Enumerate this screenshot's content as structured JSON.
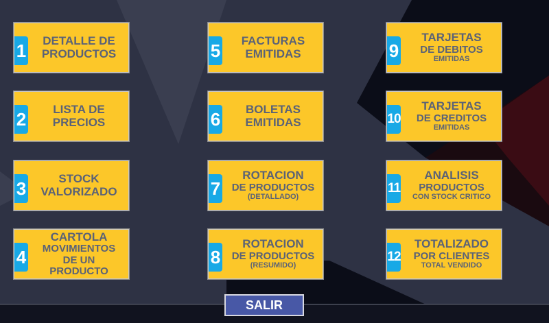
{
  "colors": {
    "card": "#fcc729",
    "badge": "#18a9e6",
    "text": "#5a6277",
    "exit_button": "#4858a6",
    "background": "#2e3244"
  },
  "cards": [
    {
      "number": "1",
      "lines": [
        {
          "t": "DETALLE DE",
          "s": "big"
        },
        {
          "t": "PRODUCTOS",
          "s": "big"
        }
      ]
    },
    {
      "number": "2",
      "lines": [
        {
          "t": "LISTA DE",
          "s": "big"
        },
        {
          "t": "PRECIOS",
          "s": "big"
        }
      ]
    },
    {
      "number": "3",
      "lines": [
        {
          "t": "STOCK",
          "s": "big"
        },
        {
          "t": "VALORIZADO",
          "s": "big"
        }
      ]
    },
    {
      "number": "4",
      "lines": [
        {
          "t": "CARTOLA",
          "s": "big"
        },
        {
          "t": "MOVIMIENTOS",
          "s": "mid"
        },
        {
          "t": "DE UN PRODUCTO",
          "s": "mid"
        }
      ]
    },
    {
      "number": "5",
      "lines": [
        {
          "t": "FACTURAS",
          "s": "big"
        },
        {
          "t": "EMITIDAS",
          "s": "big"
        }
      ]
    },
    {
      "number": "6",
      "lines": [
        {
          "t": "BOLETAS",
          "s": "big"
        },
        {
          "t": "EMITIDAS",
          "s": "big"
        }
      ]
    },
    {
      "number": "7",
      "lines": [
        {
          "t": "ROTACION",
          "s": "big"
        },
        {
          "t": "DE PRODUCTOS",
          "s": "mid"
        },
        {
          "t": "(DETALLADO)",
          "s": "small"
        }
      ]
    },
    {
      "number": "8",
      "lines": [
        {
          "t": "ROTACION",
          "s": "big"
        },
        {
          "t": "DE PRODUCTOS",
          "s": "mid"
        },
        {
          "t": "(RESUMIDO)",
          "s": "small"
        }
      ]
    },
    {
      "number": "9",
      "lines": [
        {
          "t": "TARJETAS",
          "s": "big"
        },
        {
          "t": "DE DEBITOS",
          "s": "mid"
        },
        {
          "t": "EMITIDAS",
          "s": "small"
        }
      ]
    },
    {
      "number": "10",
      "lines": [
        {
          "t": "TARJETAS",
          "s": "big"
        },
        {
          "t": "DE CREDITOS",
          "s": "mid"
        },
        {
          "t": "EMITIDAS",
          "s": "small"
        }
      ]
    },
    {
      "number": "11",
      "lines": [
        {
          "t": "ANALISIS",
          "s": "big"
        },
        {
          "t": "PRODUCTOS",
          "s": "mid"
        },
        {
          "t": "CON STOCK CRITICO",
          "s": "small"
        }
      ]
    },
    {
      "number": "12",
      "lines": [
        {
          "t": "TOTALIZADO",
          "s": "big"
        },
        {
          "t": "POR CLIENTES",
          "s": "mid"
        },
        {
          "t": "TOTAL VENDIDO",
          "s": "small"
        }
      ]
    }
  ],
  "exit_button": {
    "label": "SALIR"
  }
}
